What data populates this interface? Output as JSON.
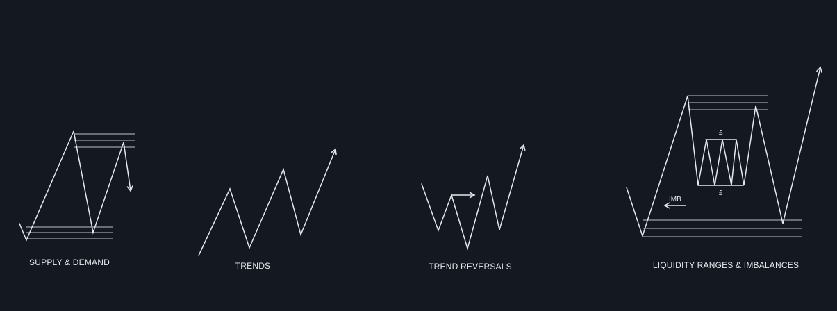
{
  "diagrams": [
    {
      "id": "supply-demand",
      "caption": "SUPPLY & DEMAND"
    },
    {
      "id": "trends",
      "caption": "TRENDS"
    },
    {
      "id": "trend-reversals",
      "caption": "TREND REVERSALS"
    },
    {
      "id": "liquidity-ranges",
      "caption": "LIQUIDITY RANGES & IMBALANCES",
      "imbalance_label": "IMB",
      "liquidity_marker_top": "£",
      "liquidity_marker_bottom": "£"
    }
  ],
  "colors": {
    "background": "#131821",
    "line": "#e6e8ec",
    "zone": "#9aa0ab"
  }
}
